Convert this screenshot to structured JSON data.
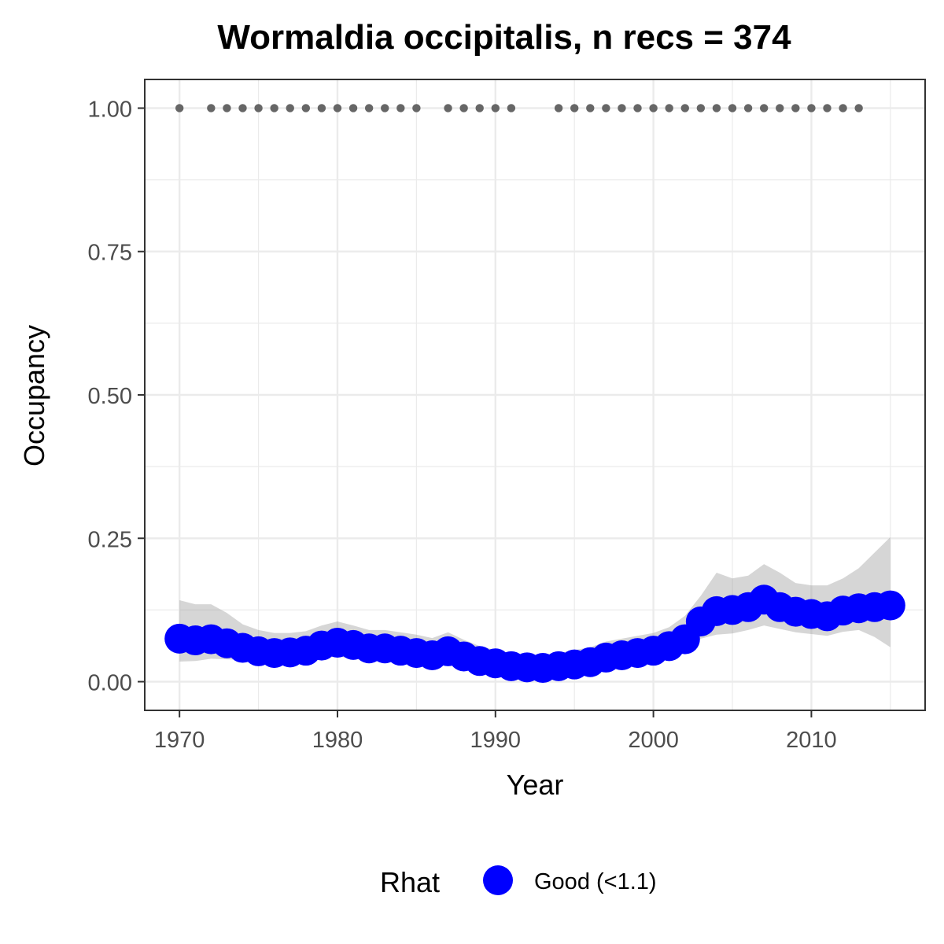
{
  "chart_data": {
    "type": "line",
    "title": "Wormaldia occipitalis, n recs = 374",
    "xlabel": "Year",
    "ylabel": "Occupancy",
    "xlim": [
      1967.8,
      2017.2
    ],
    "ylim": [
      -0.05,
      1.05
    ],
    "x_ticks": [
      1970,
      1980,
      1990,
      2000,
      2010
    ],
    "x_tick_labels": [
      "1970",
      "1980",
      "1990",
      "2000",
      "2010"
    ],
    "y_ticks": [
      0,
      0.25,
      0.5,
      0.75,
      1.0
    ],
    "y_tick_labels": [
      "0.00",
      "0.25",
      "0.50",
      "0.75",
      "1.00"
    ],
    "grid": true,
    "legend": {
      "title": "Rhat",
      "position": "bottom",
      "entries": [
        {
          "label": "Good (<1.1)",
          "color": "#0000ff"
        }
      ]
    },
    "series": [
      {
        "name": "Good (<1.1)",
        "kind": "occupancy",
        "color": "#0000ff",
        "x": [
          1970,
          1971,
          1972,
          1973,
          1974,
          1975,
          1976,
          1977,
          1978,
          1979,
          1980,
          1981,
          1982,
          1983,
          1984,
          1985,
          1986,
          1987,
          1988,
          1989,
          1990,
          1991,
          1992,
          1993,
          1994,
          1995,
          1996,
          1997,
          1998,
          1999,
          2000,
          2001,
          2002,
          2003,
          2004,
          2005,
          2006,
          2007,
          2008,
          2009,
          2010,
          2011,
          2012,
          2013,
          2014,
          2015
        ],
        "y": [
          0.075,
          0.072,
          0.074,
          0.067,
          0.059,
          0.053,
          0.05,
          0.051,
          0.054,
          0.063,
          0.068,
          0.064,
          0.058,
          0.058,
          0.054,
          0.05,
          0.046,
          0.053,
          0.044,
          0.036,
          0.032,
          0.027,
          0.025,
          0.024,
          0.027,
          0.03,
          0.034,
          0.042,
          0.046,
          0.05,
          0.054,
          0.062,
          0.074,
          0.105,
          0.123,
          0.125,
          0.13,
          0.143,
          0.13,
          0.122,
          0.118,
          0.114,
          0.124,
          0.128,
          0.13,
          0.133
        ],
        "lower": [
          0.035,
          0.036,
          0.04,
          0.039,
          0.038,
          0.035,
          0.032,
          0.032,
          0.034,
          0.04,
          0.044,
          0.04,
          0.036,
          0.036,
          0.034,
          0.031,
          0.027,
          0.032,
          0.026,
          0.02,
          0.016,
          0.013,
          0.011,
          0.011,
          0.013,
          0.015,
          0.018,
          0.023,
          0.026,
          0.029,
          0.033,
          0.04,
          0.05,
          0.075,
          0.082,
          0.084,
          0.09,
          0.098,
          0.092,
          0.086,
          0.083,
          0.08,
          0.087,
          0.09,
          0.078,
          0.06
        ],
        "upper": [
          0.142,
          0.135,
          0.135,
          0.12,
          0.1,
          0.09,
          0.085,
          0.085,
          0.088,
          0.098,
          0.105,
          0.098,
          0.09,
          0.09,
          0.086,
          0.082,
          0.076,
          0.086,
          0.073,
          0.062,
          0.055,
          0.05,
          0.047,
          0.046,
          0.05,
          0.055,
          0.06,
          0.07,
          0.075,
          0.08,
          0.085,
          0.095,
          0.115,
          0.15,
          0.19,
          0.18,
          0.185,
          0.205,
          0.19,
          0.172,
          0.168,
          0.168,
          0.18,
          0.198,
          0.225,
          0.252
        ]
      },
      {
        "name": "",
        "kind": "records",
        "color": "#666666",
        "x": [
          1970,
          1972,
          1973,
          1974,
          1975,
          1976,
          1977,
          1978,
          1979,
          1980,
          1981,
          1982,
          1983,
          1984,
          1985,
          1987,
          1988,
          1989,
          1990,
          1991,
          1994,
          1995,
          1996,
          1997,
          1998,
          1999,
          2000,
          2001,
          2002,
          2003,
          2004,
          2005,
          2006,
          2007,
          2008,
          2009,
          2010,
          2011,
          2012,
          2013
        ],
        "y": [
          1,
          1,
          1,
          1,
          1,
          1,
          1,
          1,
          1,
          1,
          1,
          1,
          1,
          1,
          1,
          1,
          1,
          1,
          1,
          1,
          1,
          1,
          1,
          1,
          1,
          1,
          1,
          1,
          1,
          1,
          1,
          1,
          1,
          1,
          1,
          1,
          1,
          1,
          1,
          1
        ]
      }
    ]
  }
}
